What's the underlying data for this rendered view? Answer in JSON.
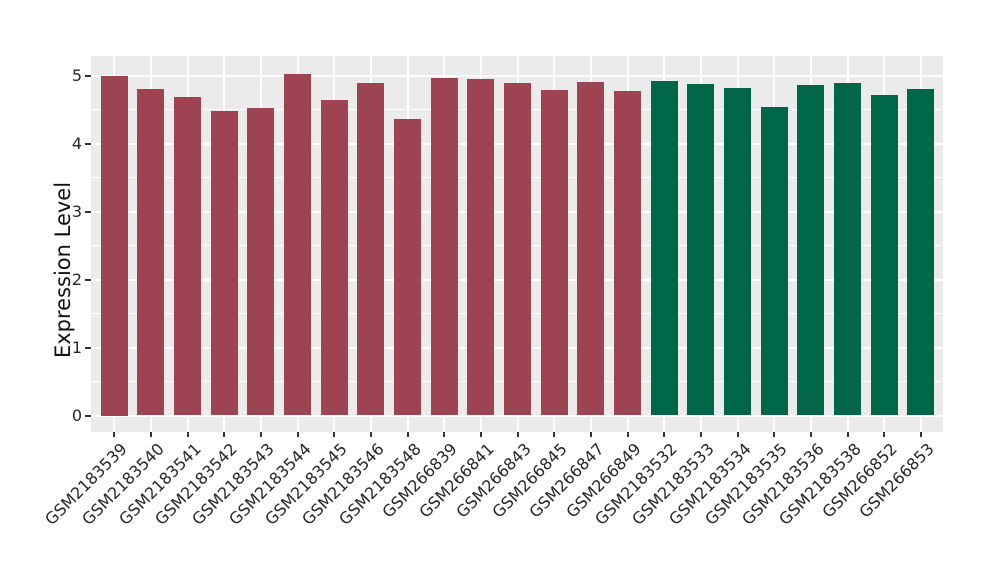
{
  "chart_data": {
    "type": "bar",
    "title": "",
    "xlabel": "",
    "ylabel": "Expression Level",
    "ylim": [
      0,
      5
    ],
    "yticks": [
      0,
      1,
      2,
      3,
      4,
      5
    ],
    "grid": "white major and minor horizontal gridlines plus vertical category gridlines on gray panel",
    "legend_position": "none",
    "panel_background": "#EBEBEB",
    "gridline_color": "#FFFFFF",
    "axis_text_color": "#262626",
    "tick_mark_color": "#333333",
    "group_colors": {
      "maroon": "#9E4352",
      "green": "#006648"
    },
    "categories": [
      "GSM2183539",
      "GSM2183540",
      "GSM2183541",
      "GSM2183542",
      "GSM2183543",
      "GSM2183544",
      "GSM2183545",
      "GSM2183546",
      "GSM2183548",
      "GSM266839",
      "GSM266841",
      "GSM266843",
      "GSM266845",
      "GSM266847",
      "GSM266849",
      "GSM2183532",
      "GSM2183533",
      "GSM2183534",
      "GSM2183535",
      "GSM2183536",
      "GSM2183538",
      "GSM266852",
      "GSM266853"
    ],
    "values": [
      5.0,
      4.81,
      4.69,
      4.49,
      4.53,
      5.03,
      4.65,
      4.9,
      4.37,
      4.97,
      4.95,
      4.89,
      4.79,
      4.91,
      4.78,
      4.92,
      4.88,
      4.82,
      4.55,
      4.87,
      4.9,
      4.72,
      4.81
    ],
    "groups": [
      "maroon",
      "maroon",
      "maroon",
      "maroon",
      "maroon",
      "maroon",
      "maroon",
      "maroon",
      "maroon",
      "maroon",
      "maroon",
      "maroon",
      "maroon",
      "maroon",
      "maroon",
      "green",
      "green",
      "green",
      "green",
      "green",
      "green",
      "green",
      "green"
    ]
  }
}
